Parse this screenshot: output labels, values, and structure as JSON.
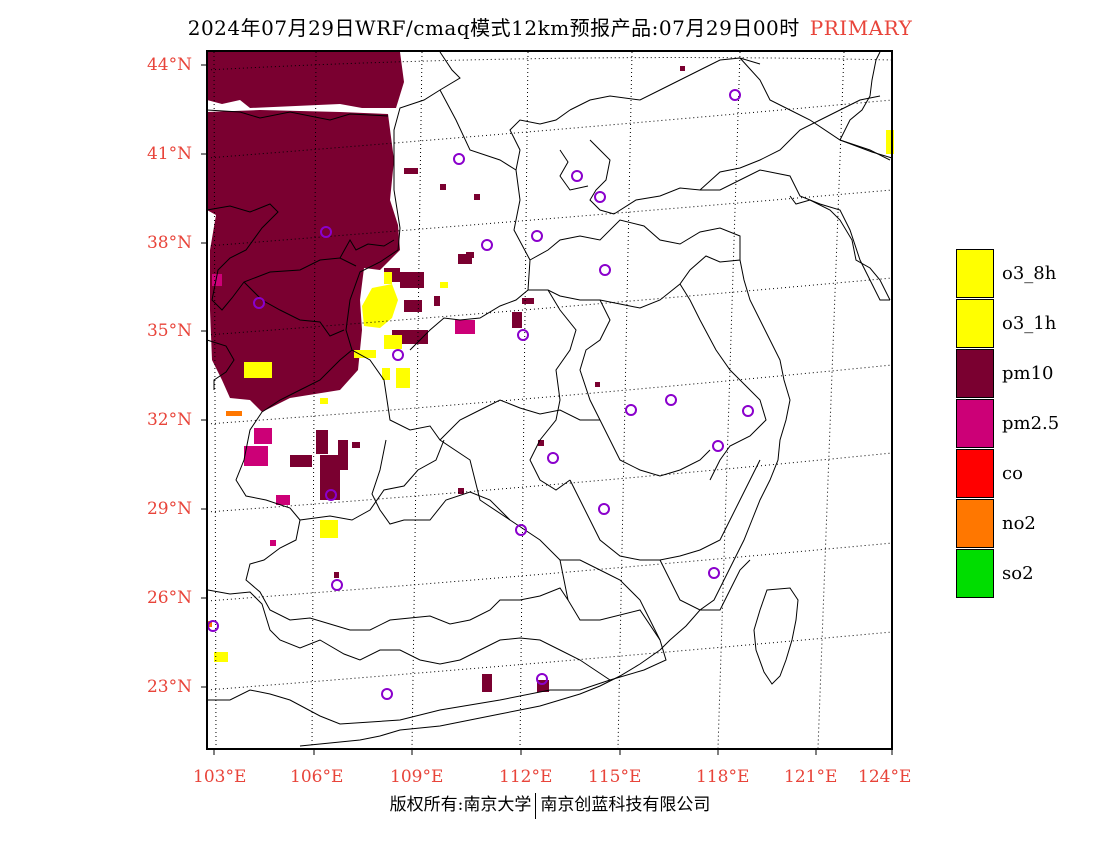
{
  "title": {
    "main": "2024年07月29日WRF/cmaq模式12km预报产品:07月29日00时",
    "tag": "PRIMARY"
  },
  "lat_labels": [
    "44°N",
    "41°N",
    "38°N",
    "35°N",
    "32°N",
    "29°N",
    "26°N",
    "23°N"
  ],
  "lon_labels": [
    "103°E",
    "106°E",
    "109°E",
    "112°E",
    "115°E",
    "118°E",
    "121°E",
    "124°E"
  ],
  "legend": [
    {
      "label": "o3_8h",
      "color": "#ffff00"
    },
    {
      "label": "o3_1h",
      "color": "#ffff00"
    },
    {
      "label": "pm10",
      "color": "#7a0030"
    },
    {
      "label": "pm2.5",
      "color": "#cc0077"
    },
    {
      "label": "co",
      "color": "#ff0000"
    },
    {
      "label": "no2",
      "color": "#ff7700"
    },
    {
      "label": "so2",
      "color": "#00dd00"
    }
  ],
  "footer": {
    "left": "版权所有:南京大学",
    "right": "南京创蓝科技有限公司"
  }
}
